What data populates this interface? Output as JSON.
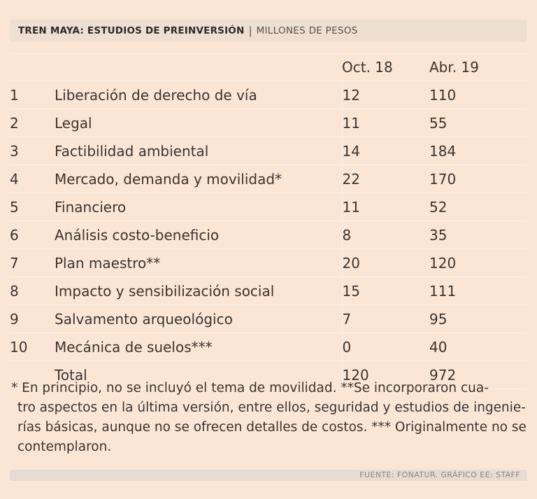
{
  "title": {
    "main": "TREN MAYA: ESTUDIOS DE PREINVERSIÓN",
    "separator": "|",
    "sub": "MILLONES DE PESOS"
  },
  "table": {
    "headers": {
      "oct": "Oct. 18",
      "abr": "Abr. 19"
    },
    "rows": [
      {
        "num": "1",
        "study": "Liberación de derecho de vía",
        "oct": "12",
        "abr": "110"
      },
      {
        "num": "2",
        "study": "Legal",
        "oct": "11",
        "abr": "55"
      },
      {
        "num": "3",
        "study": "Factibilidad ambiental",
        "oct": "14",
        "abr": "184"
      },
      {
        "num": "4",
        "study": "Mercado, demanda y movilidad*",
        "oct": "22",
        "abr": "170"
      },
      {
        "num": "5",
        "study": "Financiero",
        "oct": "11",
        "abr": "52"
      },
      {
        "num": "6",
        "study": "Análisis costo-beneficio",
        "oct": "8",
        "abr": "35"
      },
      {
        "num": "7",
        "study": "Plan maestro**",
        "oct": "20",
        "abr": "120"
      },
      {
        "num": "8",
        "study": "Impacto y sensibilización social",
        "oct": "15",
        "abr": "111"
      },
      {
        "num": "9",
        "study": "Salvamento arqueológico",
        "oct": "7",
        "abr": "95"
      },
      {
        "num": "10",
        "study": "Mecánica de suelos***",
        "oct": "0",
        "abr": "40"
      }
    ],
    "total": {
      "label": "Total",
      "oct": "120",
      "abr": "972"
    }
  },
  "footnote": {
    "lines": [
      "* En principio, no se incluyó el tema de movilidad. **Se incorporaron cua-",
      "tro aspectos en la última versión, entre ellos, seguridad y estudios de ingenie-",
      "rías básicas, aunque no se ofrecen detalles de costos. *** Originalmente no se",
      "contemplaron."
    ]
  },
  "source": "FUENTE: FONATUR. GRÁFICO EE: STAFF"
}
